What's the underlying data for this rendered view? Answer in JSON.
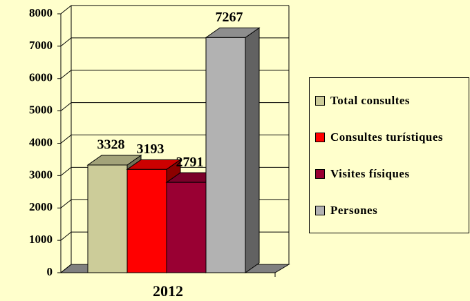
{
  "chart_data": {
    "type": "bar3d",
    "categories": [
      "2012"
    ],
    "series": [
      {
        "name": "Total consultes",
        "color": "#cccc99",
        "values": [
          3328
        ]
      },
      {
        "name": "Consultes turístiques",
        "color": "#ff0000",
        "values": [
          3193
        ]
      },
      {
        "name": "Visites físiques",
        "color": "#990033",
        "values": [
          2791
        ]
      },
      {
        "name": "Persones",
        "color": "#b2b2b2",
        "values": [
          7267
        ]
      }
    ],
    "ylim": [
      0,
      8000
    ],
    "yticks": [
      0,
      1000,
      2000,
      3000,
      4000,
      5000,
      6000,
      7000,
      8000
    ],
    "grid": true,
    "legend": "right"
  }
}
